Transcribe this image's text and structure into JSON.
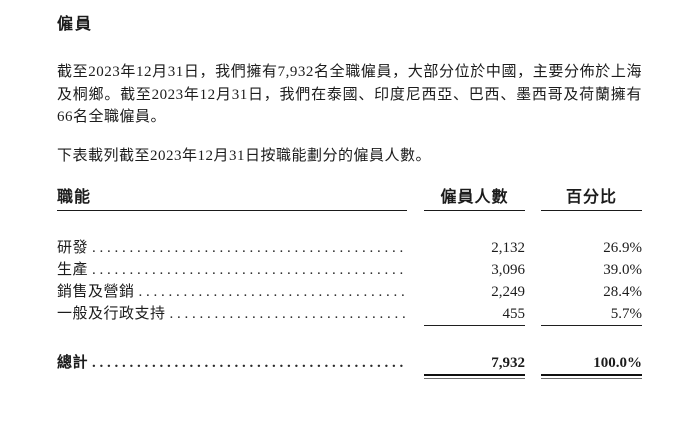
{
  "page": {
    "title": "僱員",
    "paragraph1": "截至2023年12月31日，我們擁有7,932名全職僱員，大部分位於中國，主要分佈於上海及桐鄉。截至2023年12月31日，我們在泰國、印度尼西亞、巴西、墨西哥及荷蘭擁有66名全職僱員。",
    "paragraph2": "下表載列截至2023年12月31日按職能劃分的僱員人數。"
  },
  "table": {
    "headers": {
      "function": "職能",
      "headcount": "僱員人數",
      "percentage": "百分比"
    },
    "rows": [
      {
        "label": "研發",
        "count": "2,132",
        "percent": "26.9%"
      },
      {
        "label": "生產",
        "count": "3,096",
        "percent": "39.0%"
      },
      {
        "label": "銷售及營銷",
        "count": "2,249",
        "percent": "28.4%"
      },
      {
        "label": "一般及行政支持",
        "count": "455",
        "percent": "5.7%"
      }
    ],
    "total": {
      "label": "總計",
      "count": "7,932",
      "percent": "100.0%"
    }
  }
}
